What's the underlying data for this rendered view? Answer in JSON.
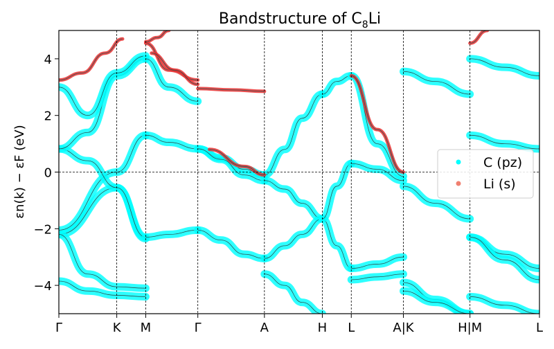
{
  "chart_data": {
    "type": "scatter",
    "title": "Bandstructure of C",
    "title_sub": "8",
    "title_suffix": "Li",
    "ylabel": "εn(k) − εF (eV)",
    "ylim": [
      -5,
      5
    ],
    "yticks": [
      -4,
      -2,
      0,
      2,
      4
    ],
    "ytick_labels": [
      "−4",
      "−2",
      "0",
      "2",
      "4"
    ],
    "xlim": [
      0,
      8.3
    ],
    "xticks": [
      0,
      1,
      1.5,
      2.4,
      3.55,
      4.55,
      5.05,
      5.95,
      7.1,
      8.3
    ],
    "xtick_labels": [
      "Γ",
      "K",
      "M",
      "Γ",
      "A",
      "H",
      "L",
      "A|K",
      "H|M",
      "L"
    ],
    "vertical_lines": [
      1,
      1.5,
      2.4,
      3.55,
      4.55,
      5.05,
      5.95,
      7.1
    ],
    "hline": 0,
    "grid": false,
    "legend_position": "right",
    "legend": [
      {
        "label": "C (pz)",
        "color": "#00ffff"
      },
      {
        "label": "Li (s)",
        "color": "#f08070"
      }
    ],
    "series": [
      {
        "name": "C (pz)",
        "role": "projection",
        "color": "#00ffff",
        "x": [
          0,
          1,
          1.5
        ],
        "y": [
          -2.05,
          0,
          1.3
        ]
      },
      {
        "name": "C (pz)",
        "role": "projection",
        "color": "#00ffff",
        "x": [
          0,
          1,
          1.5
        ],
        "y": [
          -2.2,
          -0.55,
          -2.35
        ]
      },
      {
        "name": "C (pz)",
        "role": "projection",
        "color": "#00ffff",
        "x": [
          0,
          0.5,
          1,
          1.5
        ],
        "y": [
          0.82,
          0.4,
          -0.55,
          -2.3
        ]
      },
      {
        "name": "C (pz)",
        "role": "projection",
        "color": "#00ffff",
        "x": [
          0,
          0.5,
          1,
          1.5
        ],
        "y": [
          0.82,
          1.4,
          3.4,
          4.0
        ]
      },
      {
        "name": "C (pz)",
        "role": "projection",
        "color": "#00ffff",
        "x": [
          0,
          0.5,
          1,
          1.5
        ],
        "y": [
          -2.2,
          -3.6,
          -4.05,
          -4.1
        ]
      },
      {
        "name": "C (pz)",
        "role": "projection",
        "color": "#00ffff",
        "x": [
          0,
          0.5,
          1,
          1.5
        ],
        "y": [
          -3.85,
          -4.2,
          -4.35,
          -4.4
        ]
      },
      {
        "name": "C (pz)",
        "role": "projection",
        "color": "#00ffff",
        "x": [
          0,
          0.5,
          1,
          1.5
        ],
        "y": [
          3.0,
          2.0,
          3.5,
          4.1
        ]
      },
      {
        "name": "C (pz)",
        "role": "projection",
        "color": "#00ffff",
        "x": [
          1.5,
          1.9,
          2.4
        ],
        "y": [
          1.3,
          1.05,
          0.82
        ]
      },
      {
        "name": "C (pz)",
        "role": "projection",
        "color": "#00ffff",
        "x": [
          1.5,
          1.9,
          2.4
        ],
        "y": [
          -2.3,
          -2.2,
          -2.05
        ]
      },
      {
        "name": "C (pz)",
        "role": "projection",
        "color": "#00ffff",
        "x": [
          1.5,
          1.9,
          2.4
        ],
        "y": [
          4.0,
          3.0,
          2.5
        ]
      },
      {
        "name": "C (pz)",
        "role": "projection",
        "color": "#00ffff",
        "x": [
          2.4,
          2.8,
          3.2,
          3.55
        ],
        "y": [
          0.82,
          0.5,
          0.1,
          -0.1
        ]
      },
      {
        "name": "C (pz)",
        "role": "projection",
        "color": "#00ffff",
        "x": [
          2.4,
          2.8,
          3.2,
          3.55
        ],
        "y": [
          -2.05,
          -2.4,
          -2.9,
          -3.05
        ]
      },
      {
        "name": "C (pz)",
        "role": "projection",
        "color": "#00ffff",
        "x": [
          2.4,
          2.8,
          3.2,
          3.55
        ],
        "y": [
          0.82,
          0.45,
          -0.1,
          -0.3
        ]
      },
      {
        "name": "C (pz)",
        "role": "projection",
        "color": "#00ffff",
        "x": [
          3.55,
          3.9,
          4.2,
          4.55
        ],
        "y": [
          -0.1,
          0.8,
          1.9,
          2.75
        ]
      },
      {
        "name": "C (pz)",
        "role": "projection",
        "color": "#00ffff",
        "x": [
          3.55,
          3.9,
          4.2,
          4.55
        ],
        "y": [
          -0.3,
          -0.6,
          -1.1,
          -1.65
        ]
      },
      {
        "name": "C (pz)",
        "role": "projection",
        "color": "#00ffff",
        "x": [
          3.55,
          3.9,
          4.2,
          4.55
        ],
        "y": [
          -3.05,
          -2.6,
          -2.2,
          -1.65
        ]
      },
      {
        "name": "C (pz)",
        "role": "projection",
        "color": "#00ffff",
        "x": [
          3.55,
          3.9,
          4.2,
          4.55
        ],
        "y": [
          -3.6,
          -4.0,
          -4.6,
          -5.0
        ]
      },
      {
        "name": "C (pz)",
        "role": "projection",
        "color": "#00ffff",
        "x": [
          4.55,
          4.8,
          5.05
        ],
        "y": [
          2.75,
          3.2,
          3.4
        ]
      },
      {
        "name": "C (pz)",
        "role": "projection",
        "color": "#00ffff",
        "x": [
          4.55,
          4.8,
          5.05
        ],
        "y": [
          -1.65,
          -2.6,
          -3.4
        ]
      },
      {
        "name": "C (pz)",
        "role": "projection",
        "color": "#00ffff",
        "x": [
          4.55,
          4.8,
          5.05
        ],
        "y": [
          -1.65,
          -0.5,
          0.3
        ]
      },
      {
        "name": "C (pz)",
        "role": "projection",
        "color": "#00ffff",
        "x": [
          5.05,
          5.5,
          5.95
        ],
        "y": [
          3.4,
          1.0,
          -0.15
        ]
      },
      {
        "name": "C (pz)",
        "role": "projection",
        "color": "#00ffff",
        "x": [
          5.05,
          5.5,
          5.95
        ],
        "y": [
          0.3,
          0.1,
          -0.3
        ]
      },
      {
        "name": "C (pz)",
        "role": "projection",
        "color": "#00ffff",
        "x": [
          5.05,
          5.5,
          5.95
        ],
        "y": [
          -3.4,
          -3.25,
          -3.0
        ]
      },
      {
        "name": "C (pz)",
        "role": "projection",
        "color": "#00ffff",
        "x": [
          5.05,
          5.5,
          5.95
        ],
        "y": [
          -3.8,
          -3.7,
          -3.6
        ]
      },
      {
        "name": "C (pz)",
        "role": "projection",
        "color": "#00ffff",
        "x": [
          5.95,
          6.5,
          7.1
        ],
        "y": [
          3.55,
          3.2,
          2.75
        ]
      },
      {
        "name": "C (pz)",
        "role": "projection",
        "color": "#00ffff",
        "x": [
          5.95,
          6.5,
          7.1
        ],
        "y": [
          -0.5,
          -1.1,
          -1.65
        ]
      },
      {
        "name": "C (pz)",
        "role": "projection",
        "color": "#00ffff",
        "x": [
          5.95,
          6.5,
          7.1
        ],
        "y": [
          -3.9,
          -4.5,
          -5.0
        ]
      },
      {
        "name": "C (pz)",
        "role": "projection",
        "color": "#00ffff",
        "x": [
          5.95,
          6.5,
          7.1
        ],
        "y": [
          -4.2,
          -4.6,
          -5.0
        ]
      },
      {
        "name": "C (pz)",
        "role": "projection",
        "color": "#00ffff",
        "x": [
          7.1,
          7.7,
          8.3
        ],
        "y": [
          1.3,
          1.0,
          0.82
        ]
      },
      {
        "name": "C (pz)",
        "role": "projection",
        "color": "#00ffff",
        "x": [
          7.1,
          7.7,
          8.3
        ],
        "y": [
          -2.3,
          -2.9,
          -3.4
        ]
      },
      {
        "name": "C (pz)",
        "role": "projection",
        "color": "#00ffff",
        "x": [
          7.1,
          7.7,
          8.3
        ],
        "y": [
          4.0,
          3.7,
          3.4
        ]
      },
      {
        "name": "C (pz)",
        "role": "projection",
        "color": "#00ffff",
        "x": [
          7.1,
          7.7,
          8.3
        ],
        "y": [
          -2.3,
          -3.1,
          -3.8
        ]
      },
      {
        "name": "C (pz)",
        "role": "projection",
        "color": "#00ffff",
        "x": [
          7.1,
          7.7,
          8.3
        ],
        "y": [
          -4.4,
          -4.7,
          -5.0
        ]
      },
      {
        "name": "Li (s)",
        "role": "projection",
        "color": "#e83030",
        "x": [
          0,
          0.4,
          0.8,
          1.1
        ],
        "y": [
          3.25,
          3.5,
          4.2,
          4.7
        ]
      },
      {
        "name": "Li (s)",
        "role": "projection",
        "color": "#e83030",
        "x": [
          1.5,
          1.9,
          2.4
        ],
        "y": [
          4.55,
          3.6,
          3.25
        ]
      },
      {
        "name": "Li (s)",
        "role": "projection",
        "color": "#e83030",
        "x": [
          1.5,
          1.7,
          1.9
        ],
        "y": [
          4.6,
          4.75,
          5.0
        ]
      },
      {
        "name": "Li (s)",
        "role": "projection",
        "color": "#e83030",
        "x": [
          2.4,
          3.0,
          3.55
        ],
        "y": [
          2.95,
          2.9,
          2.85
        ]
      },
      {
        "name": "Li (s)",
        "role": "projection",
        "color": "#e83030",
        "x": [
          2.6,
          3.2,
          3.55
        ],
        "y": [
          0.8,
          0.2,
          -0.1
        ]
      },
      {
        "name": "Li (s)",
        "role": "projection",
        "color": "#e83030",
        "x": [
          7.1,
          7.4
        ],
        "y": [
          4.55,
          5.0
        ]
      },
      {
        "name": "Li (s)",
        "role": "projection",
        "color": "#e83030",
        "x": [
          5.05,
          5.5,
          5.95
        ],
        "y": [
          3.4,
          1.5,
          0.0
        ]
      },
      {
        "name": "Li (s)",
        "role": "projection",
        "color": "#e83030",
        "x": [
          1.6,
          2.0,
          2.4
        ],
        "y": [
          4.2,
          3.6,
          3.1
        ]
      }
    ]
  }
}
